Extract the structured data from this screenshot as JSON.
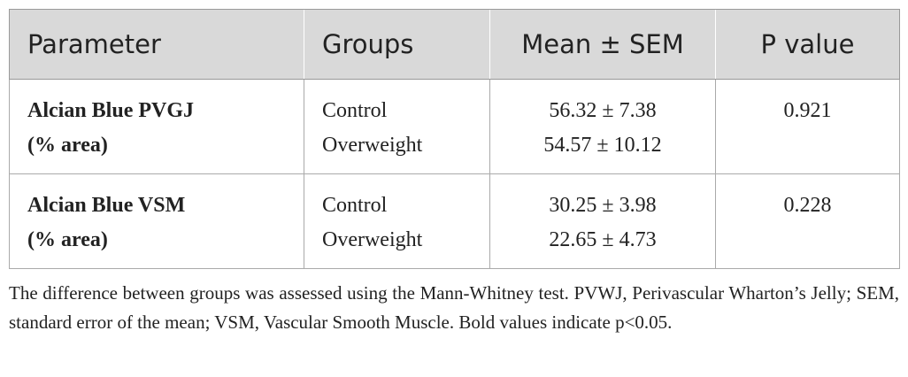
{
  "table": {
    "header": [
      "Parameter",
      "Groups",
      "Mean ± SEM",
      "P value"
    ],
    "rows": [
      {
        "parameter": [
          "Alcian Blue PVGJ",
          "(% area)"
        ],
        "groups": [
          "Control",
          "Overweight"
        ],
        "mean": [
          "56.32 ± 7.38",
          "54.57 ± 10.12"
        ],
        "p": "0.921"
      },
      {
        "parameter": [
          "Alcian Blue VSM",
          "(% area)"
        ],
        "groups": [
          "Control",
          "Overweight"
        ],
        "mean": [
          "30.25 ± 3.98",
          "22.65 ± 4.73"
        ],
        "p": "0.228"
      }
    ]
  },
  "footnote": "The difference between groups was assessed using the Mann-Whitney test. PVWJ, Perivascular Wharton’s Jelly; SEM, standard error of the mean; VSM, Vascular Smooth Muscle. Bold values indicate p<0.05."
}
